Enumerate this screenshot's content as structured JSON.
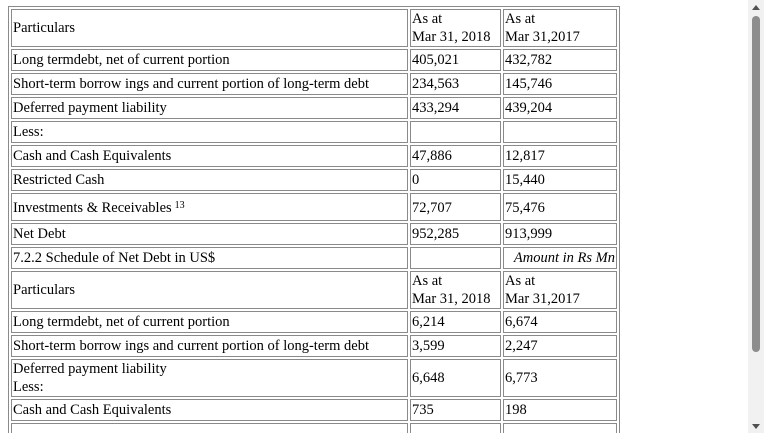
{
  "table1": {
    "header": {
      "particulars": "Particulars",
      "col2_line1": "As at",
      "col2_line2": "Mar 31, 2018",
      "col3_line1": "As at",
      "col3_line2": "Mar 31,2017"
    },
    "rows": [
      {
        "label": "Long termdebt, net of current portion",
        "v2018": "405,021",
        "v2017": "432,782"
      },
      {
        "label": "Short-term borrow ings and current portion of long-term debt",
        "v2018": "234,563",
        "v2017": "145,746"
      },
      {
        "label": "Deferred payment liability",
        "v2018": "433,294",
        "v2017": "439,204"
      },
      {
        "label": "Less:",
        "v2018": "",
        "v2017": ""
      },
      {
        "label": "Cash and Cash Equivalents",
        "v2018": "47,886",
        "v2017": "12,817"
      },
      {
        "label": "Restricted Cash",
        "v2018": "0",
        "v2017": "15,440"
      },
      {
        "label": "Investments & Receivables",
        "sup": "13",
        "v2018": "72,707",
        "v2017": "75,476"
      },
      {
        "label": "Net Debt",
        "v2018": "952,285",
        "v2017": "913,999"
      }
    ]
  },
  "section2": {
    "title": "7.2.2 Schedule of Net Debt in US$",
    "unit": "Amount in Rs Mn"
  },
  "table2": {
    "header": {
      "particulars": "Particulars",
      "col2_line1": "As at",
      "col2_line2": "Mar 31, 2018",
      "col3_line1": "As at",
      "col3_line2": "Mar 31,2017"
    },
    "rows": [
      {
        "label": "Long termdebt, net of current portion",
        "v2018": "6,214",
        "v2017": "6,674"
      },
      {
        "label": "Short-term borrow ings and current portion of long-term debt",
        "v2018": "3,599",
        "v2017": "2,247"
      },
      {
        "label_line1": "Deferred payment liability",
        "label_line2": "Less:",
        "v2018": "6,648",
        "v2017": "6,773"
      },
      {
        "label": "Cash and Cash Equivalents",
        "v2018": "735",
        "v2017": "198"
      }
    ]
  }
}
